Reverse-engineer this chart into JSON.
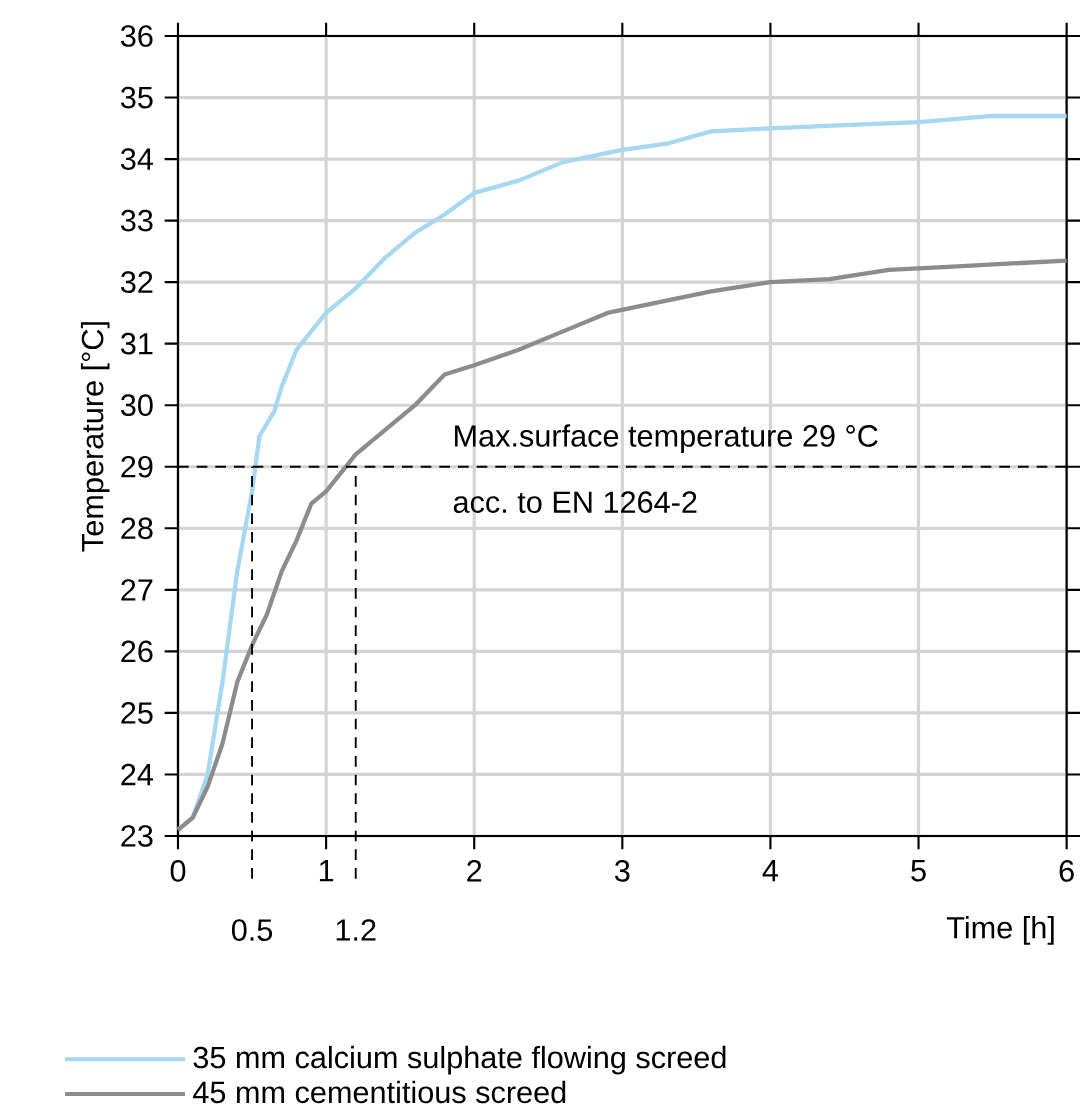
{
  "chart_data": {
    "type": "line",
    "xlabel": "Time [h]",
    "ylabel": "Temperature [°C]",
    "xlim": [
      0,
      6
    ],
    "ylim": [
      23,
      36
    ],
    "xticks": [
      0,
      1,
      2,
      3,
      4,
      5,
      6
    ],
    "yticks": [
      23,
      24,
      25,
      26,
      27,
      28,
      29,
      30,
      31,
      32,
      33,
      34,
      35,
      36
    ],
    "grid": true,
    "legend": "bottom",
    "line_style": "solid",
    "series": [
      {
        "name": "35 mm calcium sulphate flowing screed",
        "color": "#a6d8f2",
        "x": [
          0,
          0.1,
          0.2,
          0.3,
          0.4,
          0.5,
          0.55,
          0.65,
          0.7,
          0.8,
          1.0,
          1.2,
          1.4,
          1.6,
          1.8,
          2.0,
          2.3,
          2.6,
          3.0,
          3.3,
          3.6,
          4.0,
          4.5,
          5.0,
          5.5,
          6.0
        ],
        "values": [
          23.1,
          23.3,
          24.0,
          25.5,
          27.3,
          28.6,
          29.5,
          29.9,
          30.3,
          30.9,
          31.5,
          31.9,
          32.4,
          32.8,
          33.1,
          33.45,
          33.65,
          33.95,
          34.15,
          34.25,
          34.45,
          34.5,
          34.55,
          34.6,
          34.7,
          34.7
        ]
      },
      {
        "name": "45 mm cementitious screed",
        "color": "#8c8c8c",
        "x": [
          0,
          0.1,
          0.2,
          0.3,
          0.4,
          0.5,
          0.6,
          0.7,
          0.8,
          0.9,
          1.0,
          1.1,
          1.2,
          1.4,
          1.6,
          1.8,
          2.0,
          2.3,
          2.6,
          2.9,
          3.2,
          3.6,
          4.0,
          4.4,
          4.8,
          5.2,
          5.6,
          6.0
        ],
        "values": [
          23.1,
          23.3,
          23.8,
          24.5,
          25.5,
          26.1,
          26.6,
          27.3,
          27.8,
          28.4,
          28.6,
          28.9,
          29.2,
          29.6,
          30.0,
          30.5,
          30.65,
          30.9,
          31.2,
          31.5,
          31.65,
          31.85,
          32.0,
          32.05,
          32.2,
          32.25,
          32.3,
          32.35
        ]
      }
    ],
    "ref_lines": [
      {
        "axis": "y",
        "value": 29,
        "label": "Max.surface temperature 29 °C",
        "line_style": "dashed"
      },
      {
        "axis": "x",
        "value": 0.5,
        "label": "0.5",
        "line_style": "dashed"
      },
      {
        "axis": "x",
        "value": 1.2,
        "label": "1.2",
        "line_style": "dashed"
      }
    ],
    "annotations": [
      "acc. to EN 1264-2"
    ]
  }
}
